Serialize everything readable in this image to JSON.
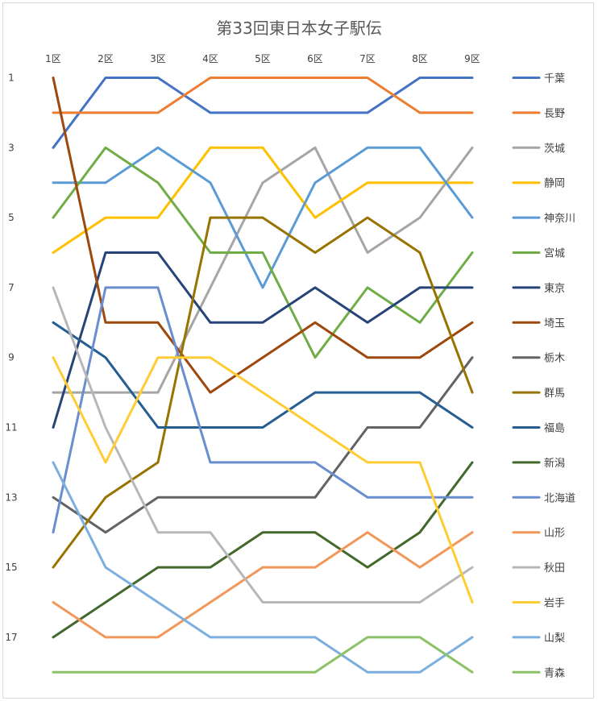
{
  "chart_data": {
    "type": "line",
    "title": "第33回東日本女子駅伝",
    "categories": [
      "1区",
      "2区",
      "3区",
      "4区",
      "5区",
      "6区",
      "7区",
      "8区",
      "9区"
    ],
    "y_tick_labels": [
      "1",
      "3",
      "5",
      "7",
      "9",
      "11",
      "13",
      "15",
      "17"
    ],
    "ylim": [
      1,
      18
    ],
    "y_inverted": true,
    "grid": false,
    "legend_position": "right",
    "series": [
      {
        "name": "千葉",
        "color": "#4472c4",
        "values": [
          3,
          1,
          1,
          2,
          2,
          2,
          2,
          1,
          1
        ]
      },
      {
        "name": "長野",
        "color": "#ed7d31",
        "values": [
          2,
          2,
          2,
          1,
          1,
          1,
          1,
          2,
          2
        ]
      },
      {
        "name": "茨城",
        "color": "#a5a5a5",
        "values": [
          10,
          10,
          10,
          7,
          4,
          3,
          6,
          5,
          3
        ]
      },
      {
        "name": "静岡",
        "color": "#ffc000",
        "values": [
          6,
          5,
          5,
          3,
          3,
          5,
          4,
          4,
          4
        ]
      },
      {
        "name": "神奈川",
        "color": "#5b9bd5",
        "values": [
          4,
          4,
          3,
          4,
          7,
          4,
          3,
          3,
          5
        ]
      },
      {
        "name": "宮城",
        "color": "#70ad47",
        "values": [
          5,
          3,
          4,
          6,
          6,
          9,
          7,
          8,
          6
        ]
      },
      {
        "name": "東京",
        "color": "#264478",
        "values": [
          11,
          6,
          6,
          8,
          8,
          7,
          8,
          7,
          7
        ]
      },
      {
        "name": "埼玉",
        "color": "#9e480e",
        "values": [
          1,
          8,
          8,
          10,
          9,
          8,
          9,
          9,
          8
        ]
      },
      {
        "name": "栃木",
        "color": "#636363",
        "values": [
          13,
          14,
          13,
          13,
          13,
          13,
          11,
          11,
          9
        ]
      },
      {
        "name": "群馬",
        "color": "#997300",
        "values": [
          15,
          13,
          12,
          5,
          5,
          6,
          5,
          6,
          10
        ]
      },
      {
        "name": "福島",
        "color": "#255e91",
        "values": [
          8,
          9,
          11,
          11,
          11,
          10,
          10,
          10,
          11
        ]
      },
      {
        "name": "新潟",
        "color": "#43682b",
        "values": [
          17,
          16,
          15,
          15,
          14,
          14,
          15,
          14,
          12
        ]
      },
      {
        "name": "北海道",
        "color": "#698ed0",
        "values": [
          14,
          7,
          7,
          12,
          12,
          12,
          13,
          13,
          13
        ]
      },
      {
        "name": "山形",
        "color": "#f1975a",
        "values": [
          16,
          17,
          17,
          16,
          15,
          15,
          14,
          15,
          14
        ]
      },
      {
        "name": "秋田",
        "color": "#b7b7b7",
        "values": [
          7,
          11,
          14,
          14,
          16,
          16,
          16,
          16,
          15
        ]
      },
      {
        "name": "岩手",
        "color": "#ffcd33",
        "values": [
          9,
          12,
          9,
          9,
          10,
          11,
          12,
          12,
          16
        ]
      },
      {
        "name": "山梨",
        "color": "#7cafdd",
        "values": [
          12,
          15,
          16,
          17,
          17,
          17,
          18,
          18,
          17
        ]
      },
      {
        "name": "青森",
        "color": "#8cc168",
        "values": [
          18,
          18,
          18,
          18,
          18,
          18,
          17,
          17,
          18
        ]
      }
    ]
  }
}
